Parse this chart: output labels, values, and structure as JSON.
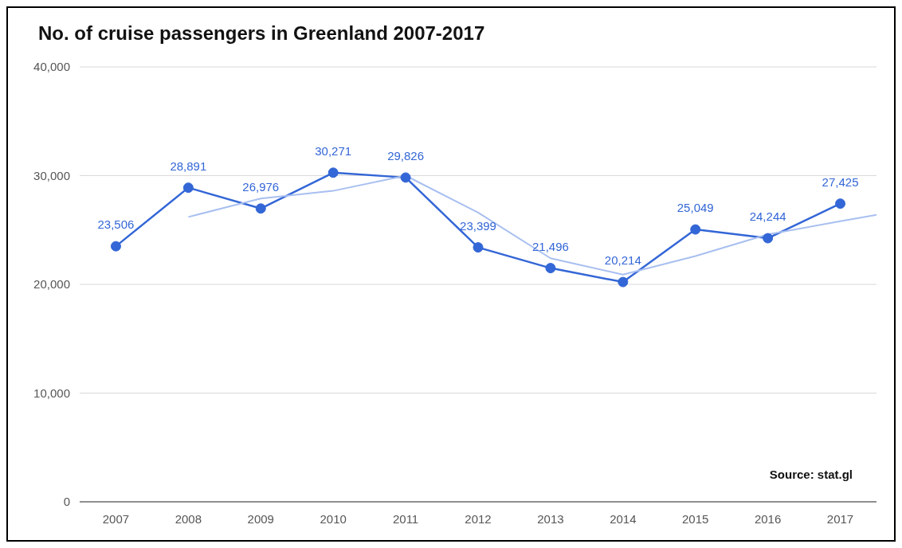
{
  "chart_data": {
    "type": "line",
    "title": "No. of cruise passengers in Greenland 2007-2017",
    "x": [
      2007,
      2008,
      2009,
      2010,
      2011,
      2012,
      2013,
      2014,
      2015,
      2016,
      2017
    ],
    "series": [
      {
        "color": "#3366d6",
        "marker": "circle",
        "values": [
          23506,
          28891,
          26976,
          30271,
          29826,
          23399,
          21496,
          20214,
          25049,
          24244,
          27425
        ],
        "value_labels": [
          "23,506",
          "28,891",
          "26,976",
          "30,271",
          "29,826",
          "23,399",
          "21,496",
          "20,214",
          "25,049",
          "24,244",
          "27,425"
        ]
      },
      {
        "type": "line",
        "color": "#a8bff0",
        "marker": "none",
        "x": [
          2008,
          2009,
          2010,
          2011,
          2012,
          2013,
          2014,
          2015,
          2016,
          2017,
          2017.5
        ],
        "values": [
          26200,
          27900,
          28600,
          30000,
          26600,
          22400,
          20900,
          22600,
          24600,
          25800,
          26400
        ]
      }
    ],
    "xlim": [
      2006.5,
      2017.5
    ],
    "xticks": [
      2007,
      2008,
      2009,
      2010,
      2011,
      2012,
      2013,
      2014,
      2015,
      2016,
      2017
    ],
    "ylim": [
      0,
      40000
    ],
    "yticks": [
      {
        "value": 0,
        "label": "0"
      },
      {
        "value": 10000,
        "label": "10,000"
      },
      {
        "value": 20000,
        "label": "20,000"
      },
      {
        "value": 30000,
        "label": "30,000"
      },
      {
        "value": 40000,
        "label": "40,000"
      }
    ],
    "grid": "y",
    "line_style": "solid",
    "annotations": [
      "Source: stat.gl"
    ]
  }
}
